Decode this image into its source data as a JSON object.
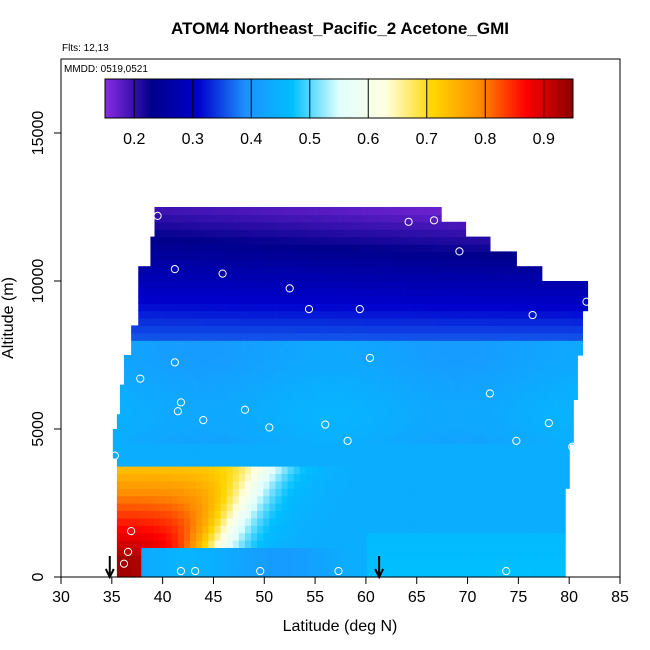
{
  "chart_data": {
    "type": "heatmap",
    "title": "ATOM4 Northeast_Pacific_2 Acetone_GMI",
    "flights_label": "Flts: 12,13",
    "date_label": "MMDD: 0519,0521",
    "xlabel": "Latitude (deg N)",
    "ylabel": "Altitude (m)",
    "xlim": [
      30,
      85
    ],
    "ylim": [
      0,
      17500
    ],
    "x_ticks": [
      30,
      35,
      40,
      45,
      50,
      55,
      60,
      65,
      70,
      75,
      80,
      85
    ],
    "y_ticks": [
      0,
      5000,
      10000,
      15000
    ],
    "colorbar": {
      "range": [
        0.15,
        0.95
      ],
      "ticks": [
        0.2,
        0.3,
        0.4,
        0.5,
        0.6,
        0.7,
        0.8,
        0.9
      ],
      "colors": [
        "#8a2be2",
        "#00008b",
        "#0000cd",
        "#1e90ff",
        "#00bfff",
        "#e0ffff",
        "#ffffe0",
        "#ffd700",
        "#ff8c00",
        "#ff0000",
        "#8b0000"
      ]
    },
    "arrows_lat": [
      34.8,
      61.3
    ],
    "observations": [
      {
        "lat": 39.5,
        "alt": 12200
      },
      {
        "lat": 64.2,
        "alt": 12000
      },
      {
        "lat": 66.7,
        "alt": 12050
      },
      {
        "lat": 69.2,
        "alt": 11000
      },
      {
        "lat": 41.2,
        "alt": 10400
      },
      {
        "lat": 45.9,
        "alt": 10250
      },
      {
        "lat": 52.5,
        "alt": 9750
      },
      {
        "lat": 54.4,
        "alt": 9050
      },
      {
        "lat": 59.4,
        "alt": 9050
      },
      {
        "lat": 76.4,
        "alt": 8850
      },
      {
        "lat": 81.7,
        "alt": 9300
      },
      {
        "lat": 41.2,
        "alt": 7250
      },
      {
        "lat": 60.4,
        "alt": 7400
      },
      {
        "lat": 37.8,
        "alt": 6700
      },
      {
        "lat": 72.2,
        "alt": 6200
      },
      {
        "lat": 41.8,
        "alt": 5900
      },
      {
        "lat": 41.5,
        "alt": 5600
      },
      {
        "lat": 48.1,
        "alt": 5650
      },
      {
        "lat": 44.0,
        "alt": 5300
      },
      {
        "lat": 50.5,
        "alt": 5050
      },
      {
        "lat": 56.0,
        "alt": 5150
      },
      {
        "lat": 58.2,
        "alt": 4600
      },
      {
        "lat": 74.8,
        "alt": 4600
      },
      {
        "lat": 78.0,
        "alt": 5200
      },
      {
        "lat": 80.3,
        "alt": 4400
      },
      {
        "lat": 35.3,
        "alt": 4100
      },
      {
        "lat": 36.9,
        "alt": 1550
      },
      {
        "lat": 36.6,
        "alt": 850
      },
      {
        "lat": 36.2,
        "alt": 450
      },
      {
        "lat": 41.8,
        "alt": 200
      },
      {
        "lat": 43.2,
        "alt": 200
      },
      {
        "lat": 49.6,
        "alt": 200
      },
      {
        "lat": 57.3,
        "alt": 200
      },
      {
        "lat": 73.8,
        "alt": 200
      }
    ]
  }
}
